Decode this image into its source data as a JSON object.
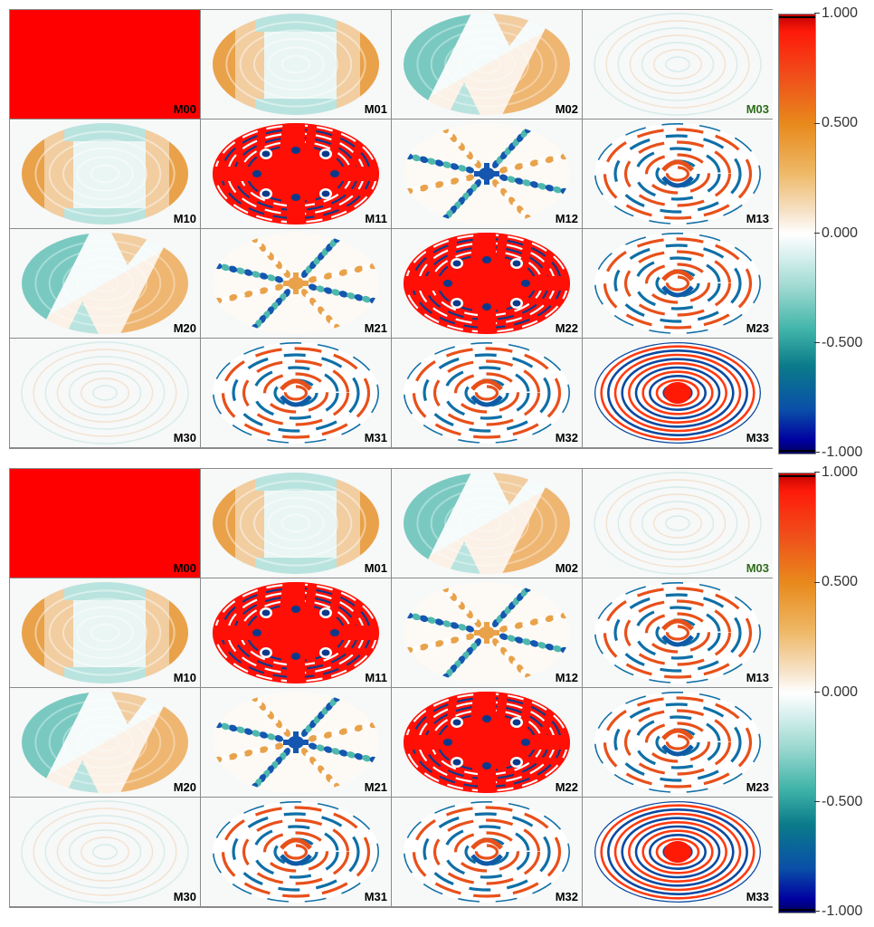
{
  "colorbar": {
    "ticks": [
      "1.000",
      "0.500",
      "0.000",
      "-0.500",
      "-1.000"
    ],
    "tick_values": [
      1.0,
      0.5,
      0.0,
      -0.5,
      -1.0
    ],
    "colors": {
      "max": "#ff0000",
      "mid_pos": "#e88a1c",
      "zero": "#ffffff",
      "mid_neg": "#3fb3a8",
      "min": "#0000a0"
    }
  },
  "panels": [
    {
      "id": "top",
      "cells": [
        {
          "label": "M00",
          "pattern": "solid"
        },
        {
          "label": "M01",
          "pattern": "lr"
        },
        {
          "label": "M02",
          "pattern": "diag"
        },
        {
          "label": "M03",
          "pattern": "faint",
          "label_color": "green"
        },
        {
          "label": "M10",
          "pattern": "lr"
        },
        {
          "label": "M11",
          "pattern": "rings-red"
        },
        {
          "label": "M12",
          "pattern": "star-blue"
        },
        {
          "label": "M13",
          "pattern": "swirl"
        },
        {
          "label": "M20",
          "pattern": "diag"
        },
        {
          "label": "M21",
          "pattern": "star-orange"
        },
        {
          "label": "M22",
          "pattern": "rings-red"
        },
        {
          "label": "M23",
          "pattern": "swirl"
        },
        {
          "label": "M30",
          "pattern": "faint"
        },
        {
          "label": "M31",
          "pattern": "swirl"
        },
        {
          "label": "M32",
          "pattern": "swirl"
        },
        {
          "label": "M33",
          "pattern": "concentric"
        }
      ]
    },
    {
      "id": "bottom",
      "cells": [
        {
          "label": "M00",
          "pattern": "solid"
        },
        {
          "label": "M01",
          "pattern": "lr"
        },
        {
          "label": "M02",
          "pattern": "diag"
        },
        {
          "label": "M03",
          "pattern": "faint",
          "label_color": "green"
        },
        {
          "label": "M10",
          "pattern": "lr"
        },
        {
          "label": "M11",
          "pattern": "rings-red"
        },
        {
          "label": "M12",
          "pattern": "star-orange"
        },
        {
          "label": "M13",
          "pattern": "swirl"
        },
        {
          "label": "M20",
          "pattern": "diag"
        },
        {
          "label": "M21",
          "pattern": "star-blue"
        },
        {
          "label": "M22",
          "pattern": "rings-red"
        },
        {
          "label": "M23",
          "pattern": "swirl"
        },
        {
          "label": "M30",
          "pattern": "faint"
        },
        {
          "label": "M31",
          "pattern": "swirl"
        },
        {
          "label": "M32",
          "pattern": "swirl"
        },
        {
          "label": "M33",
          "pattern": "concentric"
        }
      ]
    }
  ]
}
